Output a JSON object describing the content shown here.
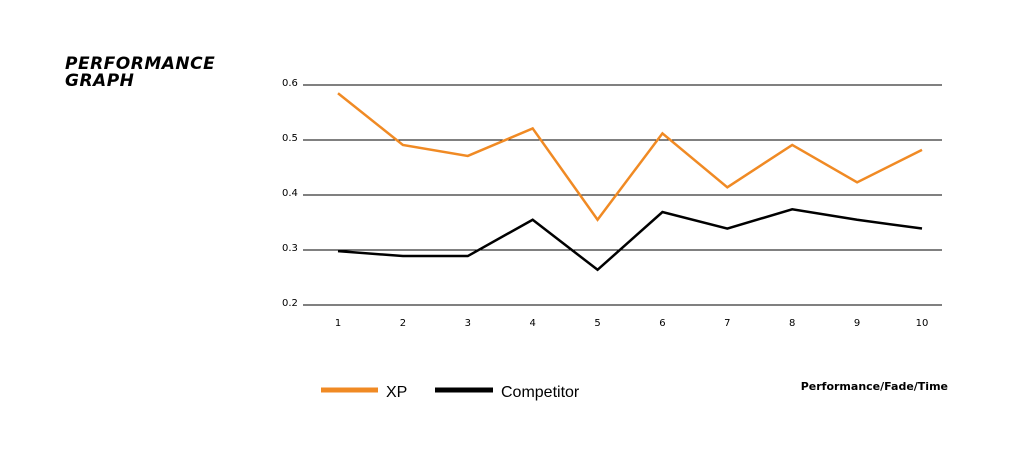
{
  "chart_data": {
    "type": "line",
    "title": "PERFORMANCE GRAPH",
    "xlabel": "Performance/Fade/Time",
    "ylabel": "",
    "x": [
      1,
      2,
      3,
      4,
      5,
      6,
      7,
      8,
      9,
      10
    ],
    "ylim": [
      0.2,
      0.6
    ],
    "yticks": [
      "0.6",
      "0.5",
      "0.4",
      "0.3",
      "0.2"
    ],
    "xticks": [
      "1",
      "2",
      "3",
      "4",
      "5",
      "6",
      "7",
      "8",
      "9",
      "10"
    ],
    "grid": "horizontal",
    "legend": "bottom-left",
    "series": [
      {
        "name": "XP",
        "color": "#f08a24",
        "values": [
          0.585,
          0.491,
          0.471,
          0.521,
          0.355,
          0.512,
          0.414,
          0.491,
          0.423,
          0.482
        ]
      },
      {
        "name": "Competitor",
        "color": "#000000",
        "values": [
          0.298,
          0.289,
          0.289,
          0.355,
          0.264,
          0.369,
          0.339,
          0.374,
          0.355,
          0.339
        ]
      }
    ]
  }
}
